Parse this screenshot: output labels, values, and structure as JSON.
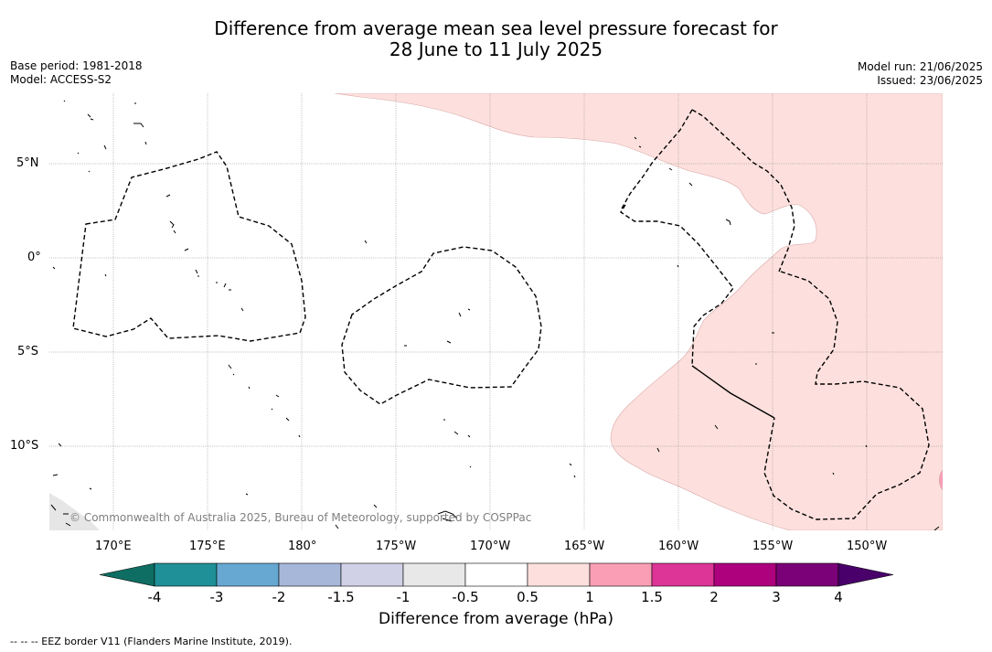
{
  "title_line1": "Difference from average mean sea level pressure forecast for",
  "title_line2": "28 June to 11 July 2025",
  "meta_left": {
    "base_period": "Base period: 1981-2018",
    "model": "Model: ACCESS-S2"
  },
  "meta_right": {
    "model_run": "Model run: 21/06/2025",
    "issued": "Issued: 23/06/2025"
  },
  "copyright": "© Commonwealth of Australia 2025, Bureau of Meteorology, supported by COSPPac",
  "lat_labels": [
    "5°N",
    "0°",
    "5°S",
    "10°S"
  ],
  "lon_labels": [
    "170°E",
    "175°E",
    "180°",
    "175°W",
    "170°W",
    "165°W",
    "160°W",
    "155°W",
    "150°W"
  ],
  "colorbar": {
    "label": "Difference from average (hPa)",
    "ticks": [
      "-4",
      "-3",
      "-2",
      "-1.5",
      "-1",
      "-0.5",
      "0.5",
      "1",
      "1.5",
      "2",
      "3",
      "4"
    ],
    "colors": [
      "#0f6e63",
      "#1f9097",
      "#66a8d1",
      "#a7b7d9",
      "#d0d1e6",
      "#e8e8e8",
      "#ffffff",
      "#fde0dd",
      "#f99eb5",
      "#dd3497",
      "#ae017e",
      "#7a0177",
      "#49006a"
    ]
  },
  "footnote": "--  --  -- EEZ border V11 (Flanders Marine Institute, 2019).",
  "colors": {
    "positive_anomaly_fill": "#fde0dd",
    "land_grey": "#e6e6e6",
    "grid": "#888888"
  }
}
